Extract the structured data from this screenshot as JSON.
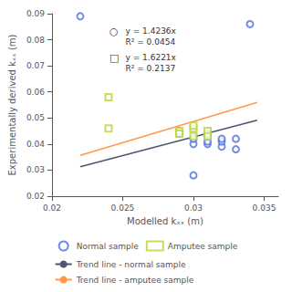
{
  "chart_data": {
    "type": "scatter",
    "xlabel": "Modelled kₓₓ (m)",
    "ylabel": "Experimentally derived kₓₓ (m)",
    "xlim": [
      0.02,
      0.036
    ],
    "ylim": [
      0.02,
      0.09
    ],
    "xticks": [
      0.02,
      0.025,
      0.03,
      0.035
    ],
    "yticks": [
      0.02,
      0.03,
      0.04,
      0.05,
      0.06,
      0.07,
      0.08,
      0.09
    ],
    "grid": false,
    "legend": "bottom",
    "annotations": [
      "○",
      "y = 1.4236x\nR² = 0.0454",
      "□",
      "y = 1.6221x\nR² = 0.2137"
    ],
    "series": [
      {
        "name": "Normal sample",
        "type": "scatter",
        "marker": "circle",
        "x": [
          0.022,
          0.029,
          0.029,
          0.03,
          0.03,
          0.031,
          0.031,
          0.031,
          0.031,
          0.032,
          0.032,
          0.032,
          0.033,
          0.033,
          0.034,
          0.03
        ],
        "values": [
          0.089,
          0.044,
          0.045,
          0.04,
          0.042,
          0.04,
          0.041,
          0.043,
          0.044,
          0.039,
          0.041,
          0.042,
          0.038,
          0.042,
          0.086,
          0.028
        ]
      },
      {
        "name": "Amputee sample",
        "type": "scatter",
        "marker": "square",
        "x": [
          0.024,
          0.024,
          0.029,
          0.029,
          0.03,
          0.03,
          0.03,
          0.031,
          0.031
        ],
        "values": [
          0.046,
          0.058,
          0.045,
          0.044,
          0.043,
          0.046,
          0.047,
          0.045,
          0.043
        ]
      },
      {
        "name": "Trend line - normal sample",
        "type": "line",
        "line_style": "solid",
        "x": [
          0.022,
          0.0345
        ],
        "values": [
          0.0313192,
          0.0491142
        ]
      },
      {
        "name": "Trend line - amputee sample",
        "type": "line",
        "line_style": "solid",
        "x": [
          0.022,
          0.0345
        ],
        "values": [
          0.0356862,
          0.05596245
        ]
      }
    ]
  }
}
